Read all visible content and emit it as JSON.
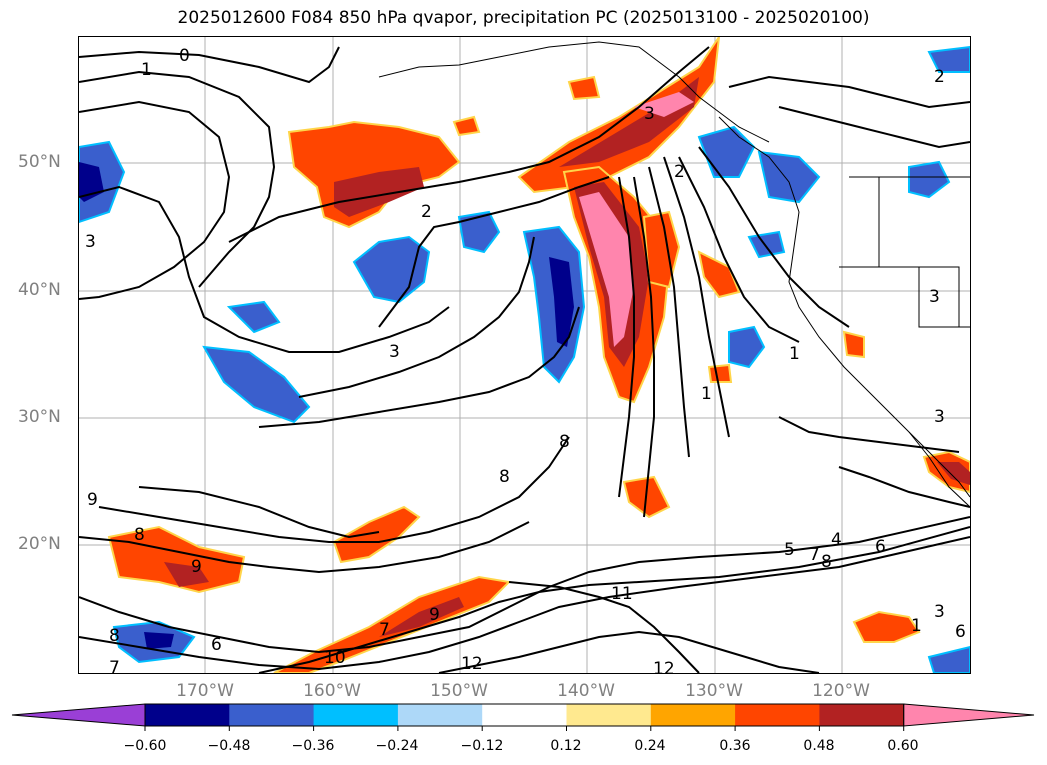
{
  "title": "2025012600 F084 850 hPa qvapor, precipitation PC (2025013100 - 2025020100)",
  "axes": {
    "lat_labels": [
      "50°N",
      "40°N",
      "30°N",
      "20°N"
    ],
    "lon_labels": [
      "170°W",
      "160°W",
      "150°W",
      "140°W",
      "130°W",
      "120°W"
    ]
  },
  "colorbar": {
    "colors": [
      "#9a3fd6",
      "#00008b",
      "#3a5fcd",
      "#00bfff",
      "#add8f8",
      "#ffffff",
      "#ffe98f",
      "#ffa500",
      "#ff4500",
      "#b22222",
      "#ff85ad"
    ],
    "ticks": [
      "−0.60",
      "−0.48",
      "−0.36",
      "−0.24",
      "−0.12",
      "0.12",
      "0.24",
      "0.36",
      "0.48",
      "0.60"
    ]
  },
  "contour_labels": [
    "0",
    "1",
    "2",
    "3",
    "3",
    "2",
    "2",
    "1",
    "3",
    "3",
    "3",
    "1",
    "8",
    "8",
    "9",
    "8",
    "9",
    "9",
    "8",
    "7",
    "7",
    "6",
    "5",
    "4",
    "6",
    "7",
    "8",
    "11",
    "12",
    "12",
    "10",
    "1",
    "6",
    "3"
  ]
}
